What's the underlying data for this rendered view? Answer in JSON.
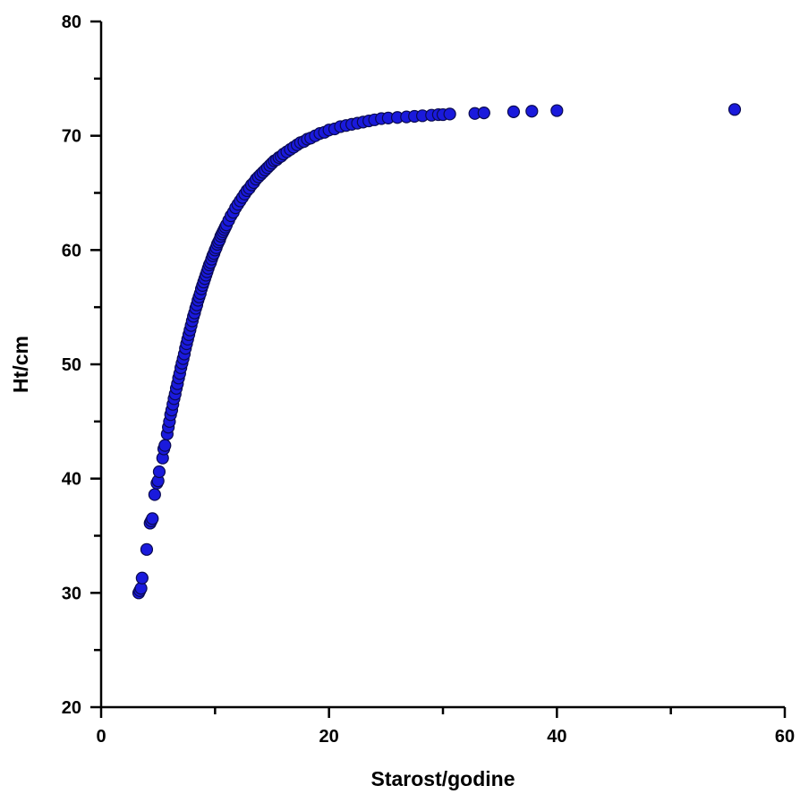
{
  "chart_data": {
    "type": "scatter",
    "title": "",
    "xlabel": "Starost/godine",
    "ylabel": "Ht/cm",
    "xlim": [
      0,
      60
    ],
    "ylim": [
      20,
      80
    ],
    "x_ticks": [
      0,
      20,
      40,
      60
    ],
    "y_ticks": [
      20,
      30,
      40,
      50,
      60,
      70,
      80
    ],
    "grid": false,
    "legend": "none",
    "marker_color": "#1a1adc",
    "marker_edge_color": "#0a0a50",
    "axis_color": "#000000",
    "series": [
      {
        "x": [
          3.3,
          3.4,
          3.5,
          3.6,
          4.0,
          4.3,
          4.4,
          4.5,
          4.7,
          4.9,
          5.0,
          5.1,
          5.4,
          5.5,
          5.6,
          5.8,
          5.9,
          6.0,
          6.1,
          6.2,
          6.3,
          6.4,
          6.5,
          6.6,
          6.7,
          6.8,
          6.9,
          7.0,
          7.1,
          7.2,
          7.3,
          7.4,
          7.5,
          7.6,
          7.7,
          7.8,
          7.9,
          8.0,
          8.1,
          8.2,
          8.3,
          8.4,
          8.5,
          8.6,
          8.7,
          8.8,
          8.9,
          9.0,
          9.1,
          9.2,
          9.3,
          9.4,
          9.5,
          9.6,
          9.7,
          9.8,
          9.9,
          10.0,
          10.1,
          10.2,
          10.3,
          10.4,
          10.5,
          10.6,
          10.7,
          10.8,
          10.9,
          11.0,
          11.2,
          11.4,
          11.6,
          11.8,
          12.0,
          12.2,
          12.4,
          12.6,
          12.8,
          13.0,
          13.2,
          13.4,
          13.6,
          13.8,
          14.0,
          14.2,
          14.4,
          14.6,
          14.8,
          15.0,
          15.2,
          15.4,
          15.6,
          15.8,
          16.0,
          16.3,
          16.6,
          16.9,
          17.2,
          17.5,
          17.8,
          18.1,
          18.4,
          18.8,
          19.2,
          19.6,
          20.0,
          20.5,
          21.0,
          21.5,
          22.0,
          22.5,
          23.0,
          23.5,
          24.0,
          24.6,
          25.2,
          26.0,
          26.8,
          27.5,
          28.2,
          29.0,
          29.6,
          30.0,
          30.6,
          32.8,
          33.6,
          36.2,
          37.8,
          40.0,
          55.6
        ],
        "y": [
          30.0,
          30.2,
          30.4,
          31.3,
          33.8,
          36.1,
          36.3,
          36.5,
          38.6,
          39.6,
          39.8,
          40.6,
          41.8,
          42.6,
          42.9,
          43.9,
          44.5,
          45.0,
          45.6,
          46.0,
          46.5,
          47.0,
          47.4,
          47.9,
          48.3,
          48.8,
          49.2,
          49.7,
          50.1,
          50.5,
          50.9,
          51.4,
          51.8,
          52.2,
          52.6,
          53.0,
          53.4,
          53.8,
          54.2,
          54.5,
          54.9,
          55.2,
          55.6,
          55.9,
          56.2,
          56.6,
          56.9,
          57.2,
          57.5,
          57.8,
          58.1,
          58.4,
          58.7,
          58.9,
          59.2,
          59.5,
          59.7,
          60.0,
          60.2,
          60.5,
          60.7,
          60.9,
          61.2,
          61.4,
          61.6,
          61.8,
          62.0,
          62.2,
          62.6,
          63.0,
          63.3,
          63.7,
          64.0,
          64.3,
          64.6,
          64.9,
          65.2,
          65.4,
          65.7,
          65.9,
          66.2,
          66.4,
          66.6,
          66.8,
          67.0,
          67.2,
          67.4,
          67.6,
          67.8,
          67.9,
          68.1,
          68.2,
          68.4,
          68.6,
          68.8,
          69.0,
          69.2,
          69.4,
          69.5,
          69.7,
          69.8,
          70.0,
          70.2,
          70.3,
          70.5,
          70.6,
          70.8,
          70.9,
          71.0,
          71.1,
          71.2,
          71.3,
          71.4,
          71.5,
          71.55,
          71.6,
          71.65,
          71.7,
          71.75,
          71.8,
          71.85,
          71.85,
          71.9,
          71.95,
          72.0,
          72.1,
          72.15,
          72.2,
          72.3
        ]
      }
    ]
  }
}
